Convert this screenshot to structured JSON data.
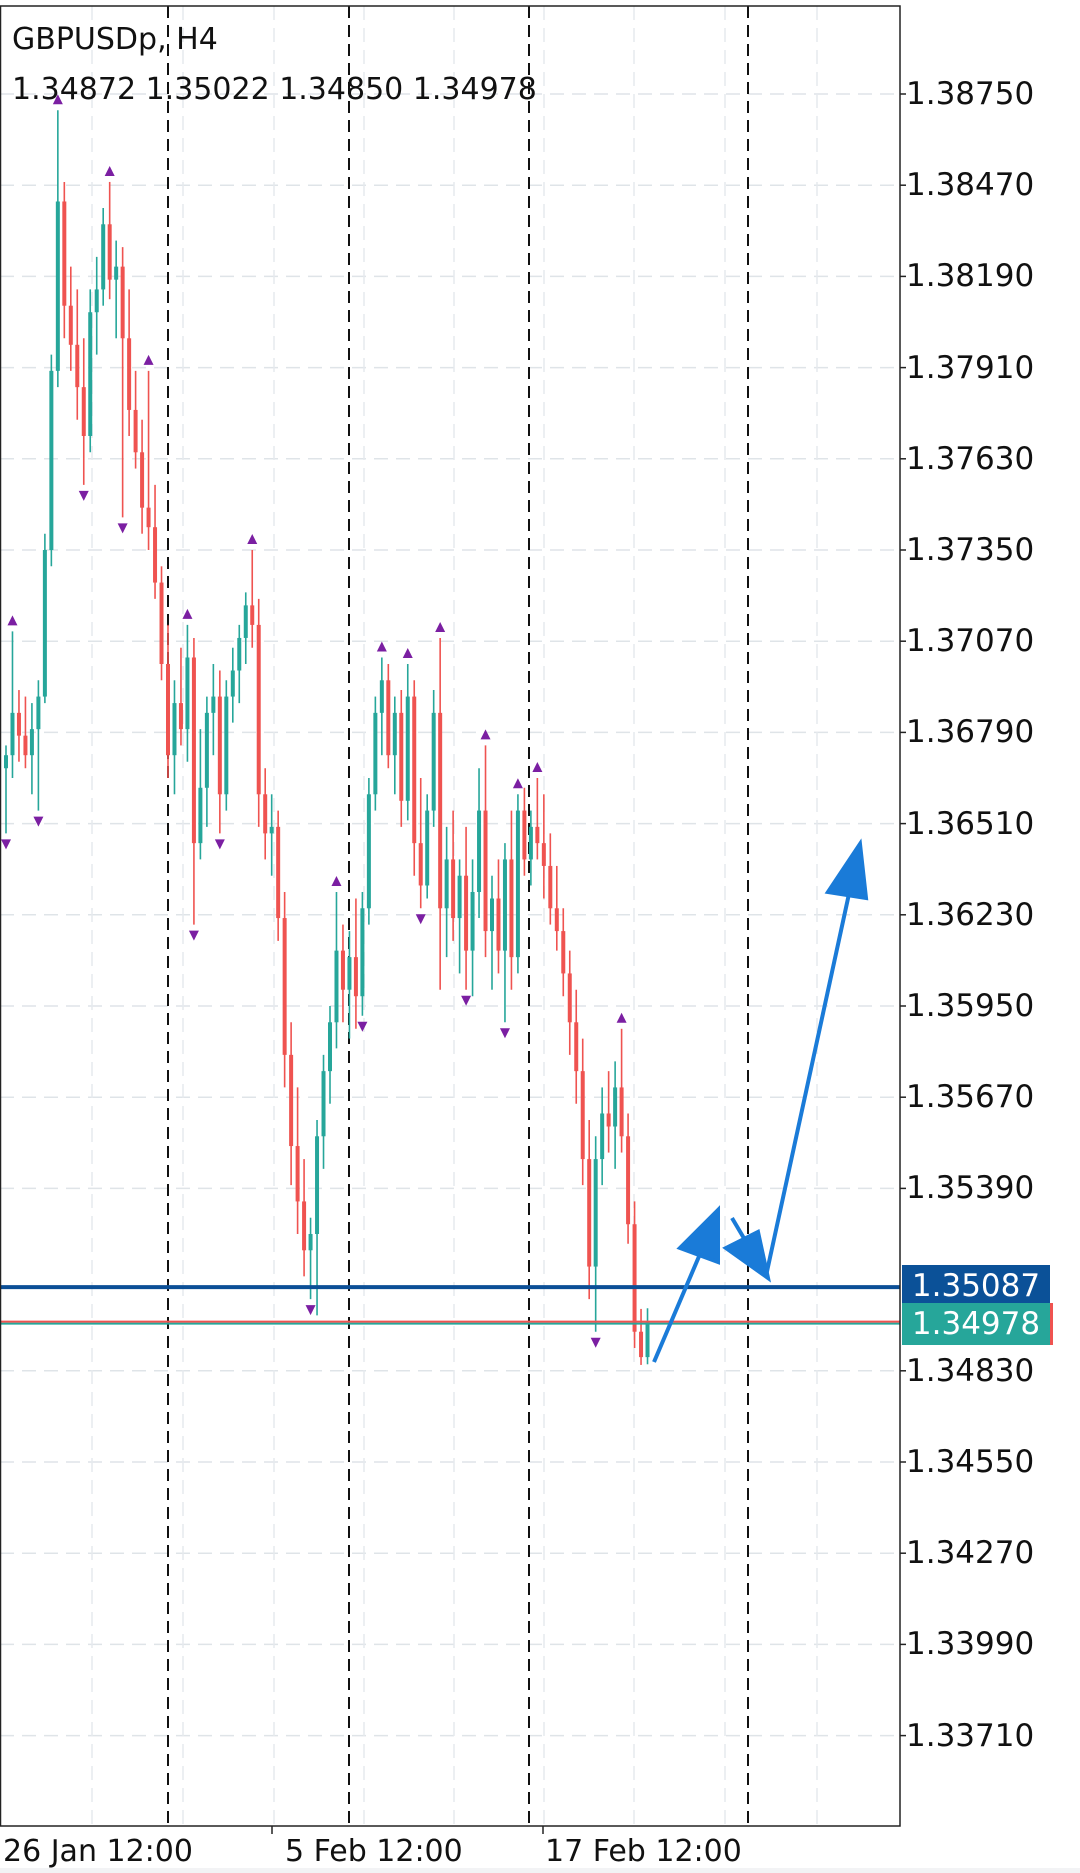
{
  "header": {
    "title": "GBPUSDp, H4",
    "ohlc": "1.34872 1.35022 1.34850 1.34978"
  },
  "colors": {
    "bull": "#26a69a",
    "bear": "#ef5350",
    "fractal": "#7b1fa2",
    "level_line": "#0b4f96",
    "drawing": "#1a7bd8",
    "bid_label": "#26a69a",
    "level_label": "#0b5198"
  },
  "chart_data": {
    "type": "candlestick",
    "symbol": "GBPUSDp",
    "timeframe": "H4",
    "ylim": [
      1.3335,
      1.3895
    ],
    "y_ticks": [
      "1.38750",
      "1.38470",
      "1.38190",
      "1.37910",
      "1.37630",
      "1.37350",
      "1.37070",
      "1.36790",
      "1.36510",
      "1.36230",
      "1.35950",
      "1.35670",
      "1.35390",
      "1.34830",
      "1.34550",
      "1.34270",
      "1.33990",
      "1.33710"
    ],
    "x_labels": [
      "26 Jan 12:00",
      "5 Feb 12:00",
      "17 Feb 12:00"
    ],
    "grid": true,
    "candles": [
      [
        1.3668,
        1.3675,
        1.3648,
        1.3672
      ],
      [
        1.3672,
        1.371,
        1.3665,
        1.3685
      ],
      [
        1.3685,
        1.3692,
        1.367,
        1.3678
      ],
      [
        1.3678,
        1.369,
        1.3668,
        1.3672
      ],
      [
        1.3672,
        1.3688,
        1.366,
        1.368
      ],
      [
        1.368,
        1.3695,
        1.3655,
        1.369
      ],
      [
        1.369,
        1.374,
        1.3688,
        1.3735
      ],
      [
        1.3735,
        1.3795,
        1.373,
        1.379
      ],
      [
        1.379,
        1.387,
        1.3785,
        1.3842
      ],
      [
        1.3842,
        1.3848,
        1.38,
        1.381
      ],
      [
        1.381,
        1.3822,
        1.379,
        1.3798
      ],
      [
        1.3798,
        1.3815,
        1.3775,
        1.3785
      ],
      [
        1.3785,
        1.38,
        1.3755,
        1.377
      ],
      [
        1.377,
        1.3815,
        1.3765,
        1.3808
      ],
      [
        1.3808,
        1.3825,
        1.3795,
        1.3815
      ],
      [
        1.3815,
        1.384,
        1.381,
        1.3835
      ],
      [
        1.3835,
        1.3848,
        1.3812,
        1.3818
      ],
      [
        1.3818,
        1.383,
        1.38,
        1.3822
      ],
      [
        1.3822,
        1.3828,
        1.3745,
        1.38
      ],
      [
        1.38,
        1.3815,
        1.377,
        1.3778
      ],
      [
        1.3778,
        1.379,
        1.376,
        1.3765
      ],
      [
        1.3765,
        1.3775,
        1.374,
        1.3748
      ],
      [
        1.3748,
        1.379,
        1.3735,
        1.3742
      ],
      [
        1.3742,
        1.3755,
        1.372,
        1.3725
      ],
      [
        1.3725,
        1.373,
        1.3695,
        1.37
      ],
      [
        1.37,
        1.3712,
        1.3665,
        1.3672
      ],
      [
        1.3672,
        1.3695,
        1.366,
        1.3688
      ],
      [
        1.3688,
        1.3705,
        1.3675,
        1.368
      ],
      [
        1.368,
        1.3712,
        1.367,
        1.3702
      ],
      [
        1.3702,
        1.3708,
        1.362,
        1.3645
      ],
      [
        1.3645,
        1.368,
        1.364,
        1.3662
      ],
      [
        1.3662,
        1.369,
        1.365,
        1.3685
      ],
      [
        1.3685,
        1.37,
        1.3672,
        1.369
      ],
      [
        1.369,
        1.3698,
        1.3648,
        1.366
      ],
      [
        1.366,
        1.3695,
        1.3655,
        1.369
      ],
      [
        1.369,
        1.3705,
        1.3682,
        1.3698
      ],
      [
        1.3698,
        1.3712,
        1.3688,
        1.3708
      ],
      [
        1.3708,
        1.3722,
        1.37,
        1.3718
      ],
      [
        1.3718,
        1.3735,
        1.3705,
        1.3712
      ],
      [
        1.3712,
        1.372,
        1.365,
        1.366
      ],
      [
        1.366,
        1.3668,
        1.364,
        1.3648
      ],
      [
        1.3648,
        1.366,
        1.3635,
        1.365
      ],
      [
        1.365,
        1.3655,
        1.3615,
        1.3622
      ],
      [
        1.3622,
        1.363,
        1.357,
        1.358
      ],
      [
        1.358,
        1.359,
        1.354,
        1.3552
      ],
      [
        1.3552,
        1.357,
        1.3525,
        1.3535
      ],
      [
        1.3535,
        1.3548,
        1.3512,
        1.352
      ],
      [
        1.352,
        1.353,
        1.3505,
        1.3525
      ],
      [
        1.3525,
        1.356,
        1.35,
        1.3555
      ],
      [
        1.3555,
        1.358,
        1.3545,
        1.3575
      ],
      [
        1.3575,
        1.3595,
        1.3565,
        1.359
      ],
      [
        1.359,
        1.363,
        1.3582,
        1.3612
      ],
      [
        1.3612,
        1.362,
        1.359,
        1.36
      ],
      [
        1.36,
        1.3618,
        1.3585,
        1.361
      ],
      [
        1.361,
        1.3628,
        1.3588,
        1.3598
      ],
      [
        1.3598,
        1.363,
        1.3592,
        1.3625
      ],
      [
        1.3625,
        1.3665,
        1.362,
        1.366
      ],
      [
        1.366,
        1.369,
        1.3655,
        1.3685
      ],
      [
        1.3685,
        1.3702,
        1.3672,
        1.3695
      ],
      [
        1.3695,
        1.37,
        1.3668,
        1.3672
      ],
      [
        1.3672,
        1.369,
        1.366,
        1.3685
      ],
      [
        1.3685,
        1.3692,
        1.365,
        1.3658
      ],
      [
        1.3658,
        1.37,
        1.3652,
        1.369
      ],
      [
        1.369,
        1.3695,
        1.3635,
        1.3645
      ],
      [
        1.3645,
        1.3665,
        1.3625,
        1.3632
      ],
      [
        1.3632,
        1.366,
        1.3628,
        1.3655
      ],
      [
        1.3655,
        1.3692,
        1.365,
        1.3685
      ],
      [
        1.3685,
        1.3708,
        1.36,
        1.3625
      ],
      [
        1.3625,
        1.365,
        1.361,
        1.364
      ],
      [
        1.364,
        1.3655,
        1.3615,
        1.3622
      ],
      [
        1.3622,
        1.364,
        1.3605,
        1.3635
      ],
      [
        1.3635,
        1.365,
        1.36,
        1.3612
      ],
      [
        1.3612,
        1.364,
        1.3598,
        1.363
      ],
      [
        1.363,
        1.3668,
        1.3622,
        1.3655
      ],
      [
        1.3655,
        1.3675,
        1.361,
        1.3618
      ],
      [
        1.3618,
        1.3635,
        1.36,
        1.3628
      ],
      [
        1.3628,
        1.364,
        1.3605,
        1.3612
      ],
      [
        1.3612,
        1.3645,
        1.359,
        1.364
      ],
      [
        1.364,
        1.3655,
        1.36,
        1.361
      ],
      [
        1.361,
        1.366,
        1.3605,
        1.3655
      ],
      [
        1.3655,
        1.3662,
        1.3635,
        1.364
      ],
      [
        1.364,
        1.3655,
        1.3632,
        1.365
      ],
      [
        1.365,
        1.3665,
        1.364,
        1.3645
      ],
      [
        1.3645,
        1.366,
        1.3628,
        1.3638
      ],
      [
        1.3638,
        1.3648,
        1.362,
        1.3625
      ],
      [
        1.3625,
        1.3638,
        1.3612,
        1.3618
      ],
      [
        1.3618,
        1.3625,
        1.3598,
        1.3605
      ],
      [
        1.3605,
        1.3612,
        1.358,
        1.359
      ],
      [
        1.359,
        1.36,
        1.3565,
        1.3575
      ],
      [
        1.3575,
        1.3585,
        1.354,
        1.3548
      ],
      [
        1.3548,
        1.356,
        1.3505,
        1.3515
      ],
      [
        1.3515,
        1.3555,
        1.3495,
        1.3548
      ],
      [
        1.3548,
        1.357,
        1.354,
        1.3562
      ],
      [
        1.3562,
        1.3575,
        1.355,
        1.3558
      ],
      [
        1.3558,
        1.3578,
        1.3545,
        1.357
      ],
      [
        1.357,
        1.3588,
        1.355,
        1.3555
      ],
      [
        1.3555,
        1.3562,
        1.3522,
        1.3528
      ],
      [
        1.3528,
        1.3535,
        1.349,
        1.3495
      ],
      [
        1.3495,
        1.3502,
        1.34848,
        1.34872
      ],
      [
        1.34872,
        1.35022,
        1.3485,
        1.34978
      ]
    ],
    "fractals_up": [
      1,
      8,
      16,
      22,
      28,
      38,
      51,
      58,
      62,
      67,
      74,
      79,
      82,
      95
    ],
    "fractals_down": [
      0,
      5,
      12,
      18,
      29,
      33,
      47,
      55,
      64,
      71,
      77,
      91
    ],
    "horizontal_level": {
      "price": 1.35087,
      "label": "1.35087"
    },
    "bid": {
      "price": 1.34978,
      "label": "1.34978"
    }
  }
}
